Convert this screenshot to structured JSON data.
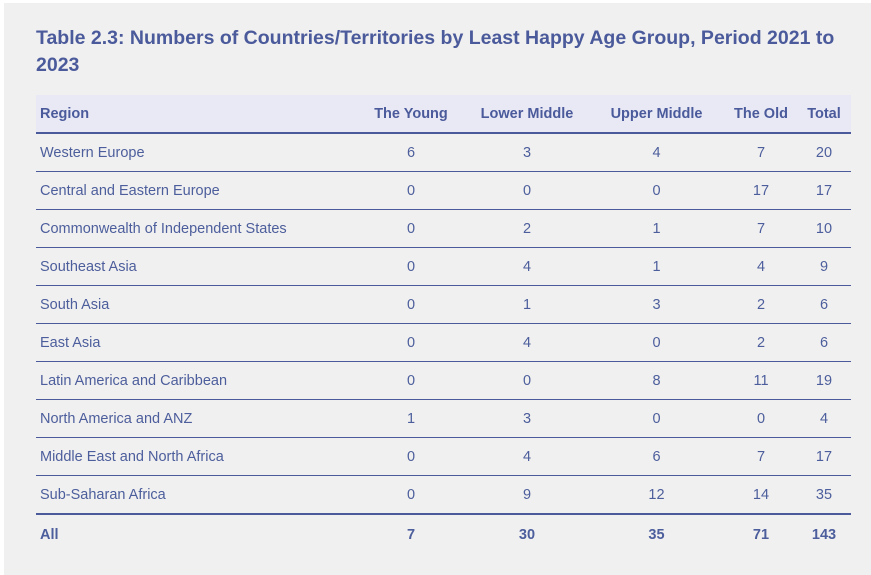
{
  "title": "Table 2.3: Numbers of Countries/Territories by Least Happy Age Group, Period 2021 to 2023",
  "table": {
    "headers": [
      "Region",
      "The Young",
      "Lower Middle",
      "Upper Middle",
      "The Old",
      "Total"
    ],
    "rows": [
      [
        "Western Europe",
        "6",
        "3",
        "4",
        "7",
        "20"
      ],
      [
        "Central and Eastern Europe",
        "0",
        "0",
        "0",
        "17",
        "17"
      ],
      [
        "Commonwealth of Independent States",
        "0",
        "2",
        "1",
        "7",
        "10"
      ],
      [
        "Southeast Asia",
        "0",
        "4",
        "1",
        "4",
        "9"
      ],
      [
        "South Asia",
        "0",
        "1",
        "3",
        "2",
        "6"
      ],
      [
        "East Asia",
        "0",
        "4",
        "0",
        "2",
        "6"
      ],
      [
        "Latin America and Caribbean",
        "0",
        "0",
        "8",
        "11",
        "19"
      ],
      [
        "North America and ANZ",
        "1",
        "3",
        "0",
        "0",
        "4"
      ],
      [
        "Middle East and North Africa",
        "0",
        "4",
        "6",
        "7",
        "17"
      ],
      [
        "Sub-Saharan Africa",
        "0",
        "9",
        "12",
        "14",
        "35"
      ]
    ],
    "total_row": [
      "All",
      "7",
      "30",
      "35",
      "71",
      "143"
    ]
  },
  "colors": {
    "text": "#4a5a9b",
    "header_bg": "#e9e9f6",
    "panel_bg": "#f1f0f0"
  }
}
